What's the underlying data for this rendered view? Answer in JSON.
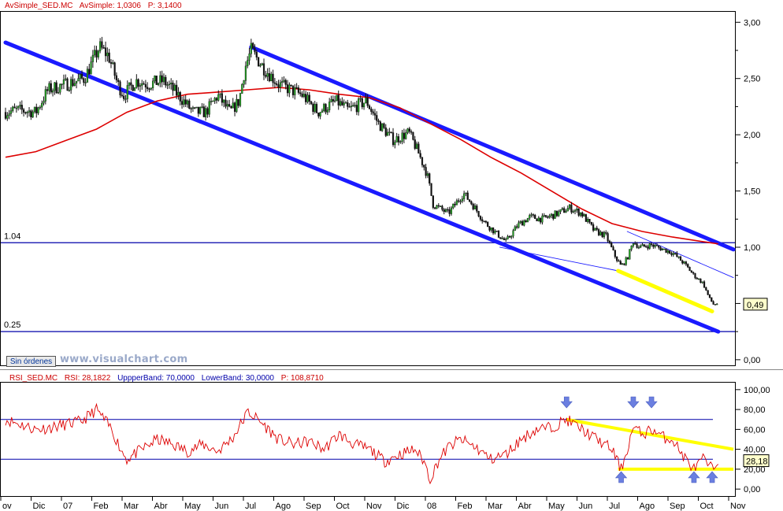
{
  "header_price": {
    "symbol_label": "AvSimple_SED.MC",
    "indicator_label": "AvSimple: 1,0306",
    "period_label": "P: 3,1400"
  },
  "header_rsi": {
    "symbol_label": "RSI_SED.MC",
    "rsi_label": "RSI: 28,1822",
    "upper_label": "UppperBand: 70,0000",
    "lower_label": "LowerBand: 30,0000",
    "period_label": "P: 108,8710"
  },
  "orders_button_label": "Sin órdenes",
  "watermark_text": "www.visualchart.com",
  "colors": {
    "channel": "#1a1aff",
    "price_up": "#22aa22",
    "price_down": "#111111",
    "ma": "#dd0000",
    "rsi": "#dd0000",
    "highlight": "#ffff00",
    "arrow": "#6b7fe0",
    "level_line": "#0000aa",
    "header_text": "#cc0000"
  },
  "chart_data": [
    {
      "type": "candlestick",
      "id": "price",
      "title": "AvSimple_SED.MC",
      "ylim": [
        -0.05,
        3.1
      ],
      "y_ticks": [
        "3,00",
        "2,50",
        "2,00",
        "1,50",
        "1,00",
        "0,50",
        "0,00"
      ],
      "y_tick_values": [
        3.0,
        2.5,
        2.0,
        1.5,
        1.0,
        0.5,
        0.0
      ],
      "last_value_label": "0,49",
      "last_value": 0.49,
      "level_labels": [
        "1.04",
        "0.25"
      ],
      "levels": [
        1.04,
        0.25
      ],
      "x_months": [
        "ov",
        "Dic",
        "07",
        "Feb",
        "Mar",
        "Abr",
        "May",
        "Jun",
        "Jul",
        "Ago",
        "Sep",
        "Oct",
        "Nov",
        "Dic",
        "08",
        "Feb",
        "Mar",
        "Abr",
        "May",
        "Jun",
        "Jul",
        "Ago",
        "Sep",
        "Oct",
        "Nov"
      ],
      "x_month_index": [
        0,
        1,
        2,
        3,
        4,
        5,
        6,
        7,
        8,
        9,
        10,
        11,
        12,
        13,
        14,
        15,
        16,
        17,
        18,
        19,
        20,
        21,
        22,
        23,
        24
      ],
      "close_anchors": [
        [
          0.0,
          2.2
        ],
        [
          0.4,
          2.22
        ],
        [
          1.0,
          2.2
        ],
        [
          1.4,
          2.4
        ],
        [
          2.0,
          2.45
        ],
        [
          2.6,
          2.5
        ],
        [
          3.1,
          2.78
        ],
        [
          3.4,
          2.7
        ],
        [
          3.7,
          2.45
        ],
        [
          3.9,
          2.35
        ],
        [
          4.3,
          2.48
        ],
        [
          4.7,
          2.45
        ],
        [
          5.2,
          2.48
        ],
        [
          5.6,
          2.38
        ],
        [
          6.2,
          2.2
        ],
        [
          6.6,
          2.2
        ],
        [
          7.0,
          2.35
        ],
        [
          7.4,
          2.2
        ],
        [
          7.7,
          2.3
        ],
        [
          7.9,
          2.6
        ],
        [
          8.1,
          2.75
        ],
        [
          8.5,
          2.6
        ],
        [
          9.0,
          2.45
        ],
        [
          9.4,
          2.4
        ],
        [
          9.8,
          2.35
        ],
        [
          10.3,
          2.2
        ],
        [
          10.9,
          2.3
        ],
        [
          11.3,
          2.22
        ],
        [
          11.9,
          2.3
        ],
        [
          12.3,
          2.1
        ],
        [
          12.8,
          1.95
        ],
        [
          13.3,
          2.02
        ],
        [
          13.6,
          1.85
        ],
        [
          13.9,
          1.65
        ],
        [
          14.1,
          1.38
        ],
        [
          14.6,
          1.3
        ],
        [
          15.1,
          1.48
        ],
        [
          15.4,
          1.38
        ],
        [
          15.8,
          1.22
        ],
        [
          16.2,
          1.12
        ],
        [
          16.5,
          1.05
        ],
        [
          16.9,
          1.2
        ],
        [
          17.3,
          1.27
        ],
        [
          17.7,
          1.25
        ],
        [
          18.2,
          1.3
        ],
        [
          18.6,
          1.35
        ],
        [
          19.0,
          1.3
        ],
        [
          19.4,
          1.15
        ],
        [
          19.8,
          1.1
        ],
        [
          20.1,
          0.92
        ],
        [
          20.3,
          0.83
        ],
        [
          20.5,
          0.9
        ],
        [
          20.7,
          1.05
        ],
        [
          20.9,
          1.0
        ],
        [
          21.3,
          1.02
        ],
        [
          21.7,
          0.98
        ],
        [
          22.0,
          0.95
        ],
        [
          22.4,
          0.85
        ],
        [
          22.7,
          0.75
        ],
        [
          23.0,
          0.68
        ],
        [
          23.2,
          0.55
        ],
        [
          23.35,
          0.49
        ],
        [
          23.5,
          0.5
        ]
      ],
      "moving_average": [
        [
          0.0,
          1.8
        ],
        [
          1.0,
          1.85
        ],
        [
          2.0,
          1.95
        ],
        [
          3.0,
          2.05
        ],
        [
          4.0,
          2.2
        ],
        [
          5.0,
          2.3
        ],
        [
          6.0,
          2.36
        ],
        [
          7.0,
          2.38
        ],
        [
          8.0,
          2.4
        ],
        [
          9.0,
          2.42
        ],
        [
          10.0,
          2.4
        ],
        [
          11.0,
          2.36
        ],
        [
          12.0,
          2.33
        ],
        [
          13.0,
          2.24
        ],
        [
          14.0,
          2.1
        ],
        [
          15.0,
          1.96
        ],
        [
          16.0,
          1.8
        ],
        [
          17.0,
          1.66
        ],
        [
          18.0,
          1.5
        ],
        [
          19.0,
          1.34
        ],
        [
          20.0,
          1.21
        ],
        [
          21.0,
          1.14
        ],
        [
          22.0,
          1.09
        ],
        [
          23.0,
          1.05
        ],
        [
          23.5,
          1.03
        ]
      ],
      "channel_lines": [
        {
          "from": [
            0.0,
            2.82
          ],
          "to": [
            23.5,
            0.25
          ],
          "role": "lower-channel"
        },
        {
          "from": [
            8.1,
            2.78
          ],
          "to": [
            24.0,
            0.98
          ],
          "role": "upper-channel"
        },
        {
          "from": [
            20.5,
            1.14
          ],
          "to": [
            24.0,
            0.73
          ],
          "role": "thin-trend"
        },
        {
          "from": [
            16.3,
            1.0
          ],
          "to": [
            20.2,
            0.79
          ],
          "role": "thin-trend"
        }
      ],
      "highlight_segments": [
        {
          "from": [
            20.2,
            0.79
          ],
          "to": [
            23.3,
            0.43
          ]
        }
      ]
    },
    {
      "type": "line",
      "id": "rsi",
      "title": "RSI_SED.MC",
      "ylim": [
        -7,
        107
      ],
      "y_ticks": [
        "100,00",
        "80,00",
        "60,00",
        "40,00",
        "20,00",
        "0,00"
      ],
      "y_tick_values": [
        100,
        80,
        60,
        40,
        20,
        0
      ],
      "last_value_label": "28,18",
      "last_value": 28.18,
      "upper_band": 70,
      "lower_band": 30,
      "rsi_anchors": [
        [
          0.0,
          70
        ],
        [
          0.5,
          65
        ],
        [
          1.0,
          60
        ],
        [
          1.5,
          62
        ],
        [
          2.0,
          65
        ],
        [
          2.5,
          68
        ],
        [
          3.0,
          80
        ],
        [
          3.5,
          60
        ],
        [
          3.8,
          40
        ],
        [
          4.0,
          30
        ],
        [
          4.5,
          40
        ],
        [
          5.0,
          50
        ],
        [
          5.5,
          45
        ],
        [
          6.0,
          38
        ],
        [
          6.5,
          45
        ],
        [
          7.0,
          38
        ],
        [
          7.5,
          52
        ],
        [
          8.0,
          78
        ],
        [
          8.5,
          65
        ],
        [
          9.0,
          50
        ],
        [
          9.5,
          45
        ],
        [
          10.0,
          48
        ],
        [
          10.5,
          40
        ],
        [
          11.0,
          55
        ],
        [
          11.5,
          45
        ],
        [
          12.0,
          40
        ],
        [
          12.5,
          28
        ],
        [
          13.0,
          35
        ],
        [
          13.5,
          40
        ],
        [
          13.8,
          28
        ],
        [
          14.0,
          10
        ],
        [
          14.3,
          30
        ],
        [
          14.6,
          42
        ],
        [
          15.0,
          50
        ],
        [
          15.5,
          42
        ],
        [
          16.0,
          30
        ],
        [
          16.5,
          35
        ],
        [
          17.0,
          50
        ],
        [
          17.5,
          60
        ],
        [
          18.0,
          62
        ],
        [
          18.5,
          70
        ],
        [
          19.0,
          60
        ],
        [
          19.5,
          50
        ],
        [
          20.0,
          40
        ],
        [
          20.3,
          20
        ],
        [
          20.5,
          40
        ],
        [
          20.7,
          62
        ],
        [
          21.0,
          55
        ],
        [
          21.3,
          60
        ],
        [
          21.7,
          52
        ],
        [
          22.0,
          50
        ],
        [
          22.3,
          35
        ],
        [
          22.7,
          20
        ],
        [
          23.0,
          30
        ],
        [
          23.3,
          20
        ],
        [
          23.5,
          28
        ]
      ],
      "highlight_segments": [
        {
          "from": [
            18.5,
            70
          ],
          "to": [
            24.0,
            40
          ]
        },
        {
          "from": [
            20.2,
            20
          ],
          "to": [
            24.0,
            20
          ]
        }
      ],
      "arrow_markers": [
        {
          "x": 18.5,
          "direction": "down"
        },
        {
          "x": 20.7,
          "direction": "down"
        },
        {
          "x": 21.3,
          "direction": "down"
        },
        {
          "x": 20.3,
          "direction": "up"
        },
        {
          "x": 22.7,
          "direction": "up"
        },
        {
          "x": 23.3,
          "direction": "up"
        }
      ]
    }
  ]
}
